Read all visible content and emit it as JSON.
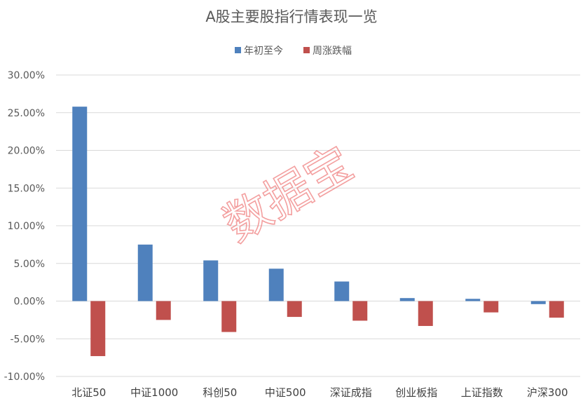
{
  "chart_data": {
    "type": "bar",
    "title": "A股主要股指行情表现一览",
    "categories": [
      "北证50",
      "中证1000",
      "科创50",
      "中证500",
      "深证成指",
      "创业板指",
      "上证指数",
      "沪深300"
    ],
    "series": [
      {
        "name": "年初至今",
        "color": "#4f81bd",
        "values": [
          25.8,
          7.5,
          5.4,
          4.3,
          2.6,
          0.4,
          0.3,
          -0.4
        ]
      },
      {
        "name": "周涨跌幅",
        "color": "#c0504d",
        "values": [
          -7.3,
          -2.5,
          -4.1,
          -2.1,
          -2.6,
          -3.3,
          -1.5,
          -2.2
        ]
      }
    ],
    "ylim": [
      -10,
      30
    ],
    "ytick_step": 5,
    "ytick_labels": [
      "30.00%",
      "25.00%",
      "20.00%",
      "15.00%",
      "10.00%",
      "5.00%",
      "0.00%",
      "-5.00%",
      "-10.00%"
    ],
    "xlabel": "",
    "ylabel": "",
    "grid": true,
    "legend_position": "top-center",
    "watermark": "数据宝"
  }
}
